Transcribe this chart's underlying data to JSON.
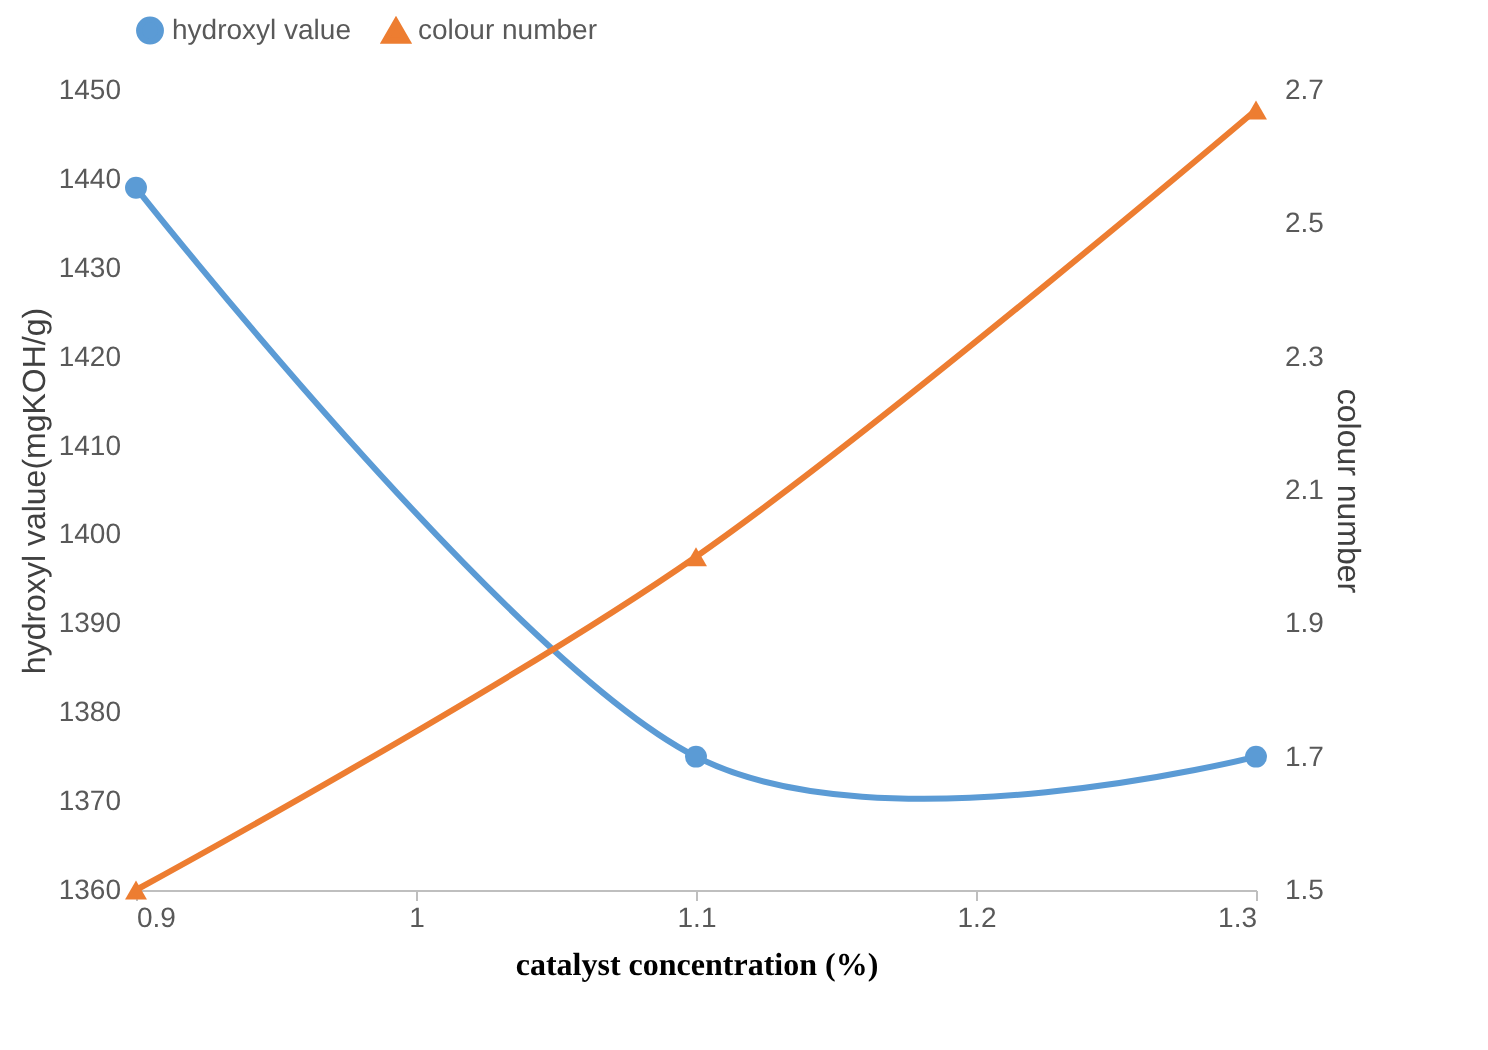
{
  "chart_data": {
    "type": "line",
    "xlabel": "catalyst concentration (%)",
    "ylabel": "hydroxyl value(mgKOH/g)",
    "y2label": "colour number",
    "x": [
      0.9,
      1.1,
      1.3
    ],
    "series": [
      {
        "name": "hydroxyl value",
        "color": "#5b9bd5",
        "values": [
          1439,
          1375,
          1375
        ],
        "marker": "circle"
      },
      {
        "name": "colour number",
        "color": "#ed7d31",
        "values": [
          1.5,
          2.0,
          2.67
        ],
        "marker": "triangle",
        "axis": "y2"
      }
    ],
    "xlim": [
      0.9,
      1.3
    ],
    "xticks": [
      0.9,
      1,
      1.1,
      1.2,
      1.3
    ],
    "ylim": [
      1360,
      1450
    ],
    "yticks": [
      1360,
      1370,
      1380,
      1390,
      1400,
      1410,
      1420,
      1430,
      1440,
      1450
    ],
    "y2lim": [
      1.5,
      2.7
    ],
    "y2ticks": [
      1.5,
      1.7,
      1.9,
      2.1,
      2.3,
      2.5,
      2.7
    ],
    "grid": false,
    "legend": "top",
    "line_style": "solid"
  }
}
